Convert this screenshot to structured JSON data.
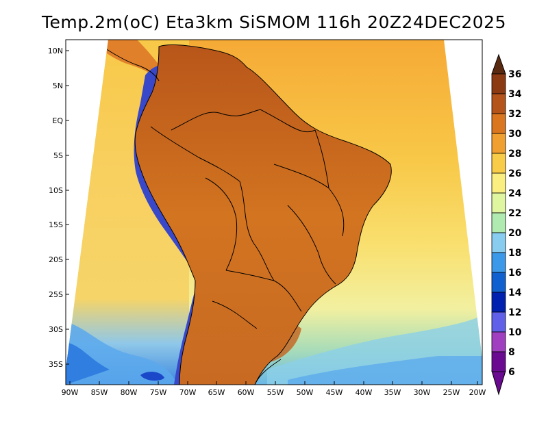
{
  "title": "Temp.2m(oC) Eta3km SiSMOM 116h 20Z24DEC2025",
  "map": {
    "variable": "2m temperature",
    "units": "oC",
    "model": "Eta3km SiSMOM",
    "lat_ticks": [
      "10N",
      "5N",
      "EQ",
      "5S",
      "10S",
      "15S",
      "20S",
      "25S",
      "30S",
      "35S"
    ],
    "lon_ticks": [
      "90W",
      "85W",
      "80W",
      "75W",
      "70W",
      "65W",
      "60W",
      "55W",
      "50W",
      "45W",
      "40W",
      "35W",
      "30W",
      "25W",
      "20W"
    ]
  },
  "colorbar": {
    "levels": [
      "36",
      "34",
      "32",
      "30",
      "28",
      "26",
      "24",
      "22",
      "20",
      "18",
      "16",
      "14",
      "12",
      "10",
      "8",
      "6"
    ],
    "colors": [
      "#5a2a10",
      "#8b3a12",
      "#b5541a",
      "#d9761f",
      "#f0a030",
      "#f8cc48",
      "#faee80",
      "#e0f5a0",
      "#b0eab0",
      "#88ccf0",
      "#3c98e8",
      "#1060d0",
      "#0020b0",
      "#6060e8",
      "#a040c0",
      "#6a0a90"
    ]
  },
  "colors": {
    "ocean_north": "#f8b038",
    "ocean_mid": "#f8d860",
    "ocean_south": "#c8e8a8",
    "land_hot": "#c4621e",
    "land_very_hot": "#9a4416",
    "andes_cold": "#3040c0"
  }
}
